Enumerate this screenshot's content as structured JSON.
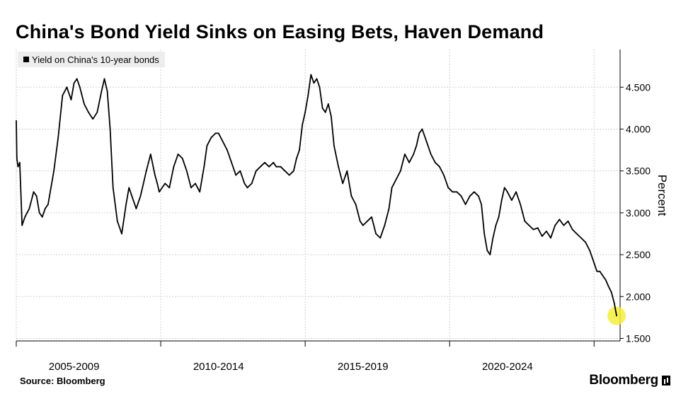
{
  "title": "China's Bond Yield Sinks on Easing Bets, Haven Demand",
  "legend": {
    "label": "Yield on China's 10-year bonds",
    "color": "#000000"
  },
  "source": "Source:  Bloomberg",
  "brand": "Bloomberg",
  "highlight_color": "#f4ee3a",
  "chart_data": {
    "type": "line",
    "title": "China's Bond Yield Sinks on Easing Bets, Haven Demand",
    "xlabel": "",
    "ylabel": "Percent",
    "x_ticks": [
      "2005-2009",
      "2010-2014",
      "2015-2019",
      "2020-2024"
    ],
    "y_ticks": [
      "1.500",
      "2.000",
      "2.500",
      "3.000",
      "3.500",
      "4.000",
      "4.500"
    ],
    "ylim": [
      1.47,
      4.95
    ],
    "xlim": [
      2004.0,
      2024.9
    ],
    "grid": true,
    "legend_position": "top-left",
    "series": [
      {
        "name": "Yield on China's 10-year bonds",
        "x": [
          2004.0,
          2004.02,
          2004.06,
          2004.12,
          2004.2,
          2004.3,
          2004.45,
          2004.6,
          2004.7,
          2004.8,
          2004.9,
          2005.0,
          2005.1,
          2005.2,
          2005.3,
          2005.45,
          2005.6,
          2005.75,
          2005.9,
          2006.0,
          2006.1,
          2006.2,
          2006.35,
          2006.5,
          2006.65,
          2006.8,
          2006.95,
          2007.05,
          2007.15,
          2007.25,
          2007.35,
          2007.5,
          2007.65,
          2007.8,
          2007.9,
          2008.0,
          2008.15,
          2008.3,
          2008.5,
          2008.65,
          2008.8,
          2008.88,
          2008.95,
          2009.05,
          2009.15,
          2009.3,
          2009.45,
          2009.6,
          2009.75,
          2009.9,
          2010.05,
          2010.2,
          2010.35,
          2010.5,
          2010.6,
          2010.75,
          2010.9,
          2011.0,
          2011.15,
          2011.3,
          2011.45,
          2011.6,
          2011.75,
          2011.9,
          2012.0,
          2012.15,
          2012.3,
          2012.45,
          2012.6,
          2012.75,
          2012.9,
          2013.0,
          2013.15,
          2013.3,
          2013.45,
          2013.6,
          2013.7,
          2013.8,
          2013.9,
          2014.0,
          2014.1,
          2014.2,
          2014.3,
          2014.4,
          2014.5,
          2014.6,
          2014.7,
          2014.8,
          2014.9,
          2015.0,
          2015.15,
          2015.3,
          2015.45,
          2015.6,
          2015.75,
          2015.9,
          2016.0,
          2016.15,
          2016.3,
          2016.45,
          2016.6,
          2016.75,
          2016.9,
          2017.0,
          2017.15,
          2017.3,
          2017.45,
          2017.6,
          2017.75,
          2017.85,
          2017.95,
          2018.05,
          2018.2,
          2018.35,
          2018.5,
          2018.65,
          2018.8,
          2018.95,
          2019.1,
          2019.25,
          2019.4,
          2019.55,
          2019.7,
          2019.85,
          2020.0,
          2020.1,
          2020.2,
          2020.3,
          2020.4,
          2020.5,
          2020.6,
          2020.7,
          2020.8,
          2020.9,
          2021.0,
          2021.15,
          2021.3,
          2021.45,
          2021.6,
          2021.75,
          2021.9,
          2022.05,
          2022.2,
          2022.35,
          2022.5,
          2022.65,
          2022.8,
          2022.95,
          2023.1,
          2023.25,
          2023.4,
          2023.55,
          2023.7,
          2023.85,
          2024.0,
          2024.1,
          2024.2,
          2024.3,
          2024.4,
          2024.5,
          2024.6,
          2024.7,
          2024.78
        ],
        "y": [
          4.1,
          3.65,
          3.55,
          3.6,
          2.85,
          2.95,
          3.05,
          3.25,
          3.2,
          3.0,
          2.95,
          3.05,
          3.1,
          3.3,
          3.5,
          3.9,
          4.4,
          4.5,
          4.35,
          4.55,
          4.6,
          4.5,
          4.3,
          4.2,
          4.12,
          4.2,
          4.45,
          4.6,
          4.45,
          4.0,
          3.3,
          2.9,
          2.75,
          3.1,
          3.3,
          3.2,
          3.05,
          3.2,
          3.5,
          3.7,
          3.45,
          3.35,
          3.25,
          3.3,
          3.35,
          3.3,
          3.55,
          3.7,
          3.65,
          3.5,
          3.3,
          3.35,
          3.25,
          3.55,
          3.8,
          3.9,
          3.95,
          3.95,
          3.85,
          3.75,
          3.6,
          3.45,
          3.5,
          3.35,
          3.3,
          3.35,
          3.5,
          3.55,
          3.6,
          3.55,
          3.6,
          3.55,
          3.55,
          3.5,
          3.45,
          3.5,
          3.65,
          3.75,
          4.05,
          4.2,
          4.4,
          4.65,
          4.55,
          4.6,
          4.5,
          4.25,
          4.2,
          4.3,
          4.15,
          3.8,
          3.55,
          3.35,
          3.5,
          3.2,
          3.1,
          2.9,
          2.85,
          2.9,
          2.95,
          2.75,
          2.7,
          2.85,
          3.05,
          3.3,
          3.4,
          3.5,
          3.7,
          3.6,
          3.7,
          3.8,
          3.95,
          4.0,
          3.85,
          3.7,
          3.6,
          3.55,
          3.45,
          3.3,
          3.25,
          3.25,
          3.2,
          3.1,
          3.2,
          3.25,
          3.2,
          3.1,
          2.75,
          2.55,
          2.5,
          2.7,
          2.85,
          2.95,
          3.15,
          3.3,
          3.25,
          3.15,
          3.25,
          3.1,
          2.9,
          2.85,
          2.8,
          2.82,
          2.72,
          2.78,
          2.7,
          2.85,
          2.92,
          2.85,
          2.9,
          2.8,
          2.75,
          2.7,
          2.65,
          2.55,
          2.4,
          2.3,
          2.3,
          2.25,
          2.2,
          2.12,
          2.05,
          1.92,
          1.77
        ]
      }
    ],
    "highlight_point": {
      "x": 2024.78,
      "y": 1.77
    }
  }
}
